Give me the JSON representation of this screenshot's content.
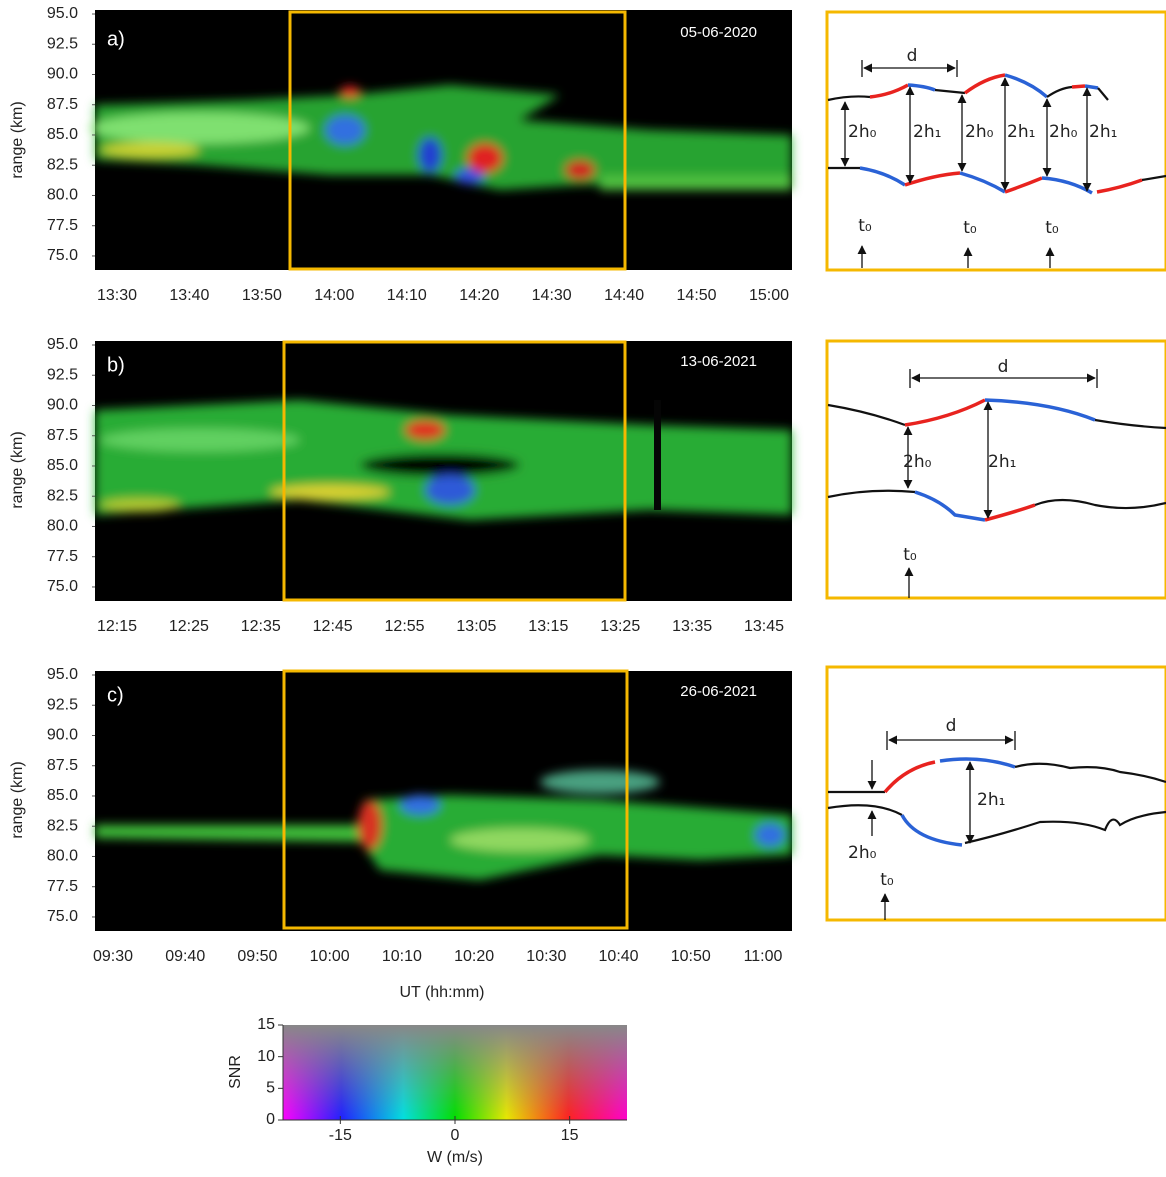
{
  "panels": [
    {
      "label": "a)",
      "date": "05-06-2020",
      "ylabel": "range (km)",
      "ylim": [
        73.84,
        95.33
      ],
      "yticks": [
        {
          "value": 95,
          "label": "95.0"
        },
        {
          "value": 92.5,
          "label": "92.5"
        },
        {
          "value": 90,
          "label": "90.0"
        },
        {
          "value": 87.5,
          "label": "87.5"
        },
        {
          "value": 85,
          "label": "85.0"
        },
        {
          "value": 82.5,
          "label": "82.5"
        },
        {
          "value": 80,
          "label": "80.0"
        },
        {
          "value": 77.5,
          "label": "77.5"
        },
        {
          "value": 75,
          "label": "75.0"
        }
      ],
      "xticks": [
        "13:30",
        "13:40",
        "13:50",
        "14:00",
        "14:10",
        "14:20",
        "14:30",
        "14:40",
        "14:50",
        "15:00"
      ],
      "schematic": [
        "d",
        "2h₀",
        "2h₁",
        "2h₀",
        "2h₁",
        "2h₀",
        "2h₁",
        "t₀",
        "t₀",
        "t₀"
      ]
    },
    {
      "label": "b)",
      "date": "13-06-2021",
      "ylabel": "range (km)",
      "ylim": [
        73.84,
        95.33
      ],
      "yticks": [
        {
          "value": 95,
          "label": "95.0"
        },
        {
          "value": 92.5,
          "label": "92.5"
        },
        {
          "value": 90,
          "label": "90.0"
        },
        {
          "value": 87.5,
          "label": "87.5"
        },
        {
          "value": 85,
          "label": "85.0"
        },
        {
          "value": 82.5,
          "label": "82.5"
        },
        {
          "value": 80,
          "label": "80.0"
        },
        {
          "value": 77.5,
          "label": "77.5"
        },
        {
          "value": 75,
          "label": "75.0"
        }
      ],
      "xticks": [
        "12:15",
        "12:25",
        "12:35",
        "12:45",
        "12:55",
        "13:05",
        "13:15",
        "13:25",
        "13:35",
        "13:45"
      ],
      "schematic": [
        "d",
        "2h₀",
        "2h₁",
        "t₀"
      ]
    },
    {
      "label": "c)",
      "date": "26-06-2021",
      "ylabel": "range (km)",
      "ylim": [
        73.84,
        95.33
      ],
      "yticks": [
        {
          "value": 95,
          "label": "95.0"
        },
        {
          "value": 92.5,
          "label": "92.5"
        },
        {
          "value": 90,
          "label": "90.0"
        },
        {
          "value": 87.5,
          "label": "87.5"
        },
        {
          "value": 85,
          "label": "85.0"
        },
        {
          "value": 82.5,
          "label": "82.5"
        },
        {
          "value": 80,
          "label": "80.0"
        },
        {
          "value": 77.5,
          "label": "77.5"
        },
        {
          "value": 75,
          "label": "75.0"
        }
      ],
      "xticks": [
        "09:30",
        "09:40",
        "09:50",
        "10:00",
        "10:10",
        "10:20",
        "10:30",
        "10:40",
        "10:50",
        "11:00"
      ],
      "schematic": [
        "d",
        "2h₁",
        "2h₀",
        "t₀"
      ]
    }
  ],
  "xlabel": "UT (hh:mm)",
  "colorbar": {
    "xlabel": "W (m/s)",
    "ylabel": "SNR",
    "xlim": [
      -22.5,
      22.5
    ],
    "xticks": [
      -15,
      0,
      15
    ],
    "ylim": [
      0,
      15
    ],
    "yticks": [
      0,
      5,
      10,
      15
    ]
  }
}
